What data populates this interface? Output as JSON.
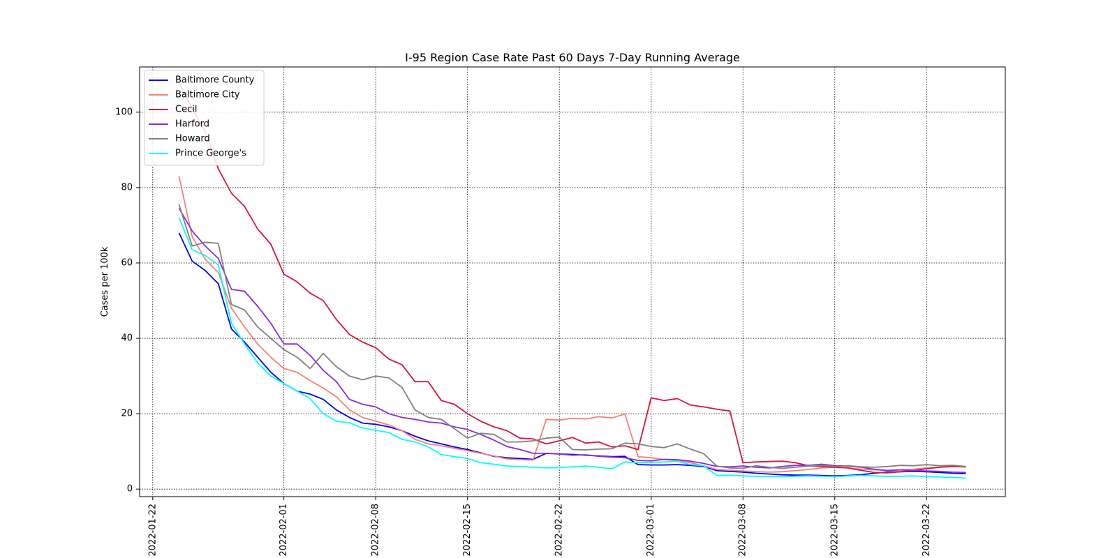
{
  "chart_data": {
    "type": "line",
    "title": "I-95 Region Case Rate  Past 60 Days 7-Day Running Average",
    "xlabel": "",
    "ylabel": "Cases per 100k",
    "xlim": [
      "2022-01-21",
      "2022-03-28"
    ],
    "ylim": [
      -2,
      112
    ],
    "x_ticks": [
      "2022-01-22",
      "2022-02-01",
      "2022-02-08",
      "2022-02-15",
      "2022-02-22",
      "2022-03-01",
      "2022-03-08",
      "2022-03-15",
      "2022-03-22"
    ],
    "y_ticks": [
      0,
      20,
      40,
      60,
      80,
      100
    ],
    "grid": true,
    "legend_position": "top-left",
    "x": [
      "2022-01-24",
      "2022-01-25",
      "2022-01-26",
      "2022-01-27",
      "2022-01-28",
      "2022-01-29",
      "2022-01-30",
      "2022-01-31",
      "2022-02-01",
      "2022-02-02",
      "2022-02-03",
      "2022-02-04",
      "2022-02-05",
      "2022-02-06",
      "2022-02-07",
      "2022-02-08",
      "2022-02-09",
      "2022-02-10",
      "2022-02-11",
      "2022-02-12",
      "2022-02-13",
      "2022-02-14",
      "2022-02-15",
      "2022-02-16",
      "2022-02-17",
      "2022-02-18",
      "2022-02-19",
      "2022-02-20",
      "2022-02-21",
      "2022-02-22",
      "2022-02-23",
      "2022-02-24",
      "2022-02-25",
      "2022-02-26",
      "2022-02-27",
      "2022-02-28",
      "2022-03-01",
      "2022-03-02",
      "2022-03-03",
      "2022-03-04",
      "2022-03-05",
      "2022-03-06",
      "2022-03-07",
      "2022-03-08",
      "2022-03-09",
      "2022-03-10",
      "2022-03-11",
      "2022-03-12",
      "2022-03-13",
      "2022-03-14",
      "2022-03-15",
      "2022-03-16",
      "2022-03-17",
      "2022-03-18",
      "2022-03-19",
      "2022-03-20",
      "2022-03-21",
      "2022-03-22",
      "2022-03-23",
      "2022-03-24",
      "2022-03-25"
    ],
    "series": [
      {
        "name": "Baltimore County",
        "color": "#0000ff",
        "values": [
          68,
          60.5,
          58,
          54.5,
          42.5,
          39,
          35,
          31,
          28,
          26,
          25.2,
          23.8,
          21,
          19,
          17.5,
          17.2,
          16.5,
          15.5,
          14,
          12.8,
          12,
          11.2,
          10.5,
          9.6,
          8.7,
          8.3,
          8.1,
          7.9,
          9.5,
          9.3,
          9.2,
          9.0,
          8.8,
          8.6,
          8.7,
          6.5,
          6.4,
          6.4,
          6.5,
          6.3,
          6.0,
          4.9,
          4.7,
          4.5,
          4.2,
          4.0,
          3.8,
          3.7,
          3.7,
          3.6,
          3.5,
          3.6,
          3.8,
          4.2,
          4.5,
          4.6,
          4.7,
          4.6,
          4.4,
          4.2,
          4.1
        ]
      },
      {
        "name": "Baltimore City",
        "color": "#fa8072",
        "values": [
          83,
          67,
          61,
          57.5,
          48,
          43,
          38.5,
          35,
          32,
          31,
          28.8,
          26.8,
          24.5,
          21,
          19,
          18,
          17,
          15.5,
          13.2,
          12,
          11.5,
          10.8,
          10.2,
          9.5,
          8.8,
          8.0,
          7.8,
          7.7,
          18.5,
          18.3,
          18.8,
          18.6,
          19.2,
          18.9,
          19.9,
          8.6,
          8.3,
          7.8,
          7.6,
          7.0,
          6.2,
          5.2,
          5.0,
          4.8,
          4.6,
          4.5,
          4.6,
          4.9,
          5.2,
          5.6,
          5.8,
          5.6,
          5.3,
          5.1,
          5.0,
          5.1,
          5.3,
          5.6,
          5.8,
          6.0,
          5.9
        ]
      },
      {
        "name": "Cecil",
        "color": "#dc143c",
        "values": [
          108,
          101,
          95,
          85,
          78.5,
          75,
          69,
          65,
          57,
          55,
          52,
          50,
          45,
          41,
          39,
          37.5,
          34.5,
          33,
          28.5,
          28.5,
          23.5,
          22.5,
          20,
          18,
          16.5,
          15.5,
          13.5,
          13.3,
          12,
          12.8,
          13.7,
          12.2,
          12.5,
          11.2,
          11.5,
          10.5,
          24.2,
          23.5,
          24,
          22.3,
          21.8,
          21.2,
          20.7,
          7.0,
          7.2,
          7.3,
          7.4,
          7.0,
          6.2,
          6.0,
          5.8,
          5.6,
          5.0,
          4.4,
          4.3,
          4.6,
          4.9,
          5.4,
          5.8,
          6.0,
          5.9
        ]
      },
      {
        "name": "Harford",
        "color": "#8a2be2",
        "values": [
          74.5,
          68.5,
          64.5,
          61.2,
          53,
          52.5,
          48.5,
          44,
          38.5,
          38.5,
          35.5,
          31.5,
          28.5,
          23.8,
          22.5,
          21.8,
          20,
          19,
          18.5,
          17.8,
          17.5,
          16.5,
          15.8,
          14.5,
          13,
          11.3,
          10.5,
          9.5,
          9.5,
          9.3,
          9.0,
          9.1,
          8.7,
          8.5,
          8.3,
          7.6,
          7.5,
          7.9,
          7.8,
          7.4,
          6.8,
          6.0,
          5.9,
          6.1,
          5.8,
          5.6,
          6.0,
          6.3,
          6.3,
          6.6,
          6.2,
          6.1,
          5.8,
          5.3,
          4.9,
          5.1,
          4.9,
          4.8,
          4.7,
          4.5,
          4.4
        ]
      },
      {
        "name": "Howard",
        "color": "#808080",
        "values": [
          75.5,
          64.5,
          65.5,
          65.2,
          49,
          47.5,
          43,
          40,
          37,
          35,
          32,
          36,
          32.5,
          30,
          29,
          30,
          29.5,
          27,
          21,
          19,
          18.5,
          16,
          13.5,
          14.8,
          14.5,
          12.5,
          12.5,
          12.8,
          13.5,
          13.8,
          10.5,
          10.4,
          10.6,
          10.7,
          12.2,
          12,
          11.3,
          11.0,
          12.0,
          10.6,
          9.4,
          6.1,
          5.6,
          5.5,
          6.2,
          5.8,
          5.5,
          5.8,
          6.1,
          6.3,
          6.0,
          6.2,
          5.9,
          5.8,
          6.0,
          6.3,
          6.2,
          6.5,
          6.2,
          6.3,
          6.0
        ]
      },
      {
        "name": "Prince George's",
        "color": "#00ffff",
        "values": [
          72,
          63.5,
          62,
          59.5,
          44,
          38.5,
          33.5,
          30,
          28,
          26,
          24,
          20,
          18,
          17.6,
          16.2,
          15.6,
          15,
          13.2,
          12.5,
          11.2,
          9.2,
          8.6,
          8.1,
          7.0,
          6.6,
          6.1,
          6.0,
          5.8,
          5.6,
          5.7,
          5.9,
          6.1,
          5.8,
          5.4,
          7.2,
          7.0,
          7.1,
          7.2,
          7.4,
          6.5,
          6.2,
          3.6,
          3.7,
          3.5,
          3.4,
          3.3,
          3.3,
          3.4,
          3.5,
          3.4,
          3.3,
          3.5,
          3.6,
          3.5,
          3.4,
          3.4,
          3.5,
          3.3,
          3.2,
          3.1,
          2.9
        ]
      }
    ]
  }
}
